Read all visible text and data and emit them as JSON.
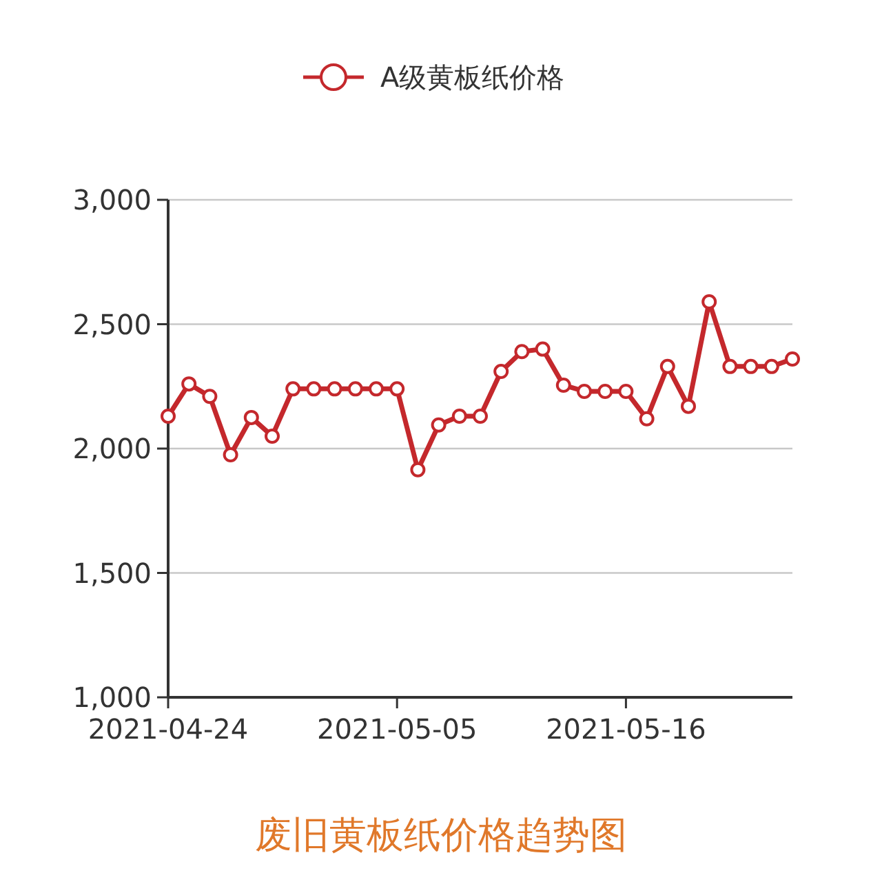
{
  "chart_data": {
    "type": "line",
    "title": "废旧黄板纸价格趋势图",
    "x": [
      "2021-04-24",
      "2021-04-25",
      "2021-04-26",
      "2021-04-27",
      "2021-04-28",
      "2021-04-29",
      "2021-04-30",
      "2021-05-01",
      "2021-05-02",
      "2021-05-03",
      "2021-05-04",
      "2021-05-05",
      "2021-05-06",
      "2021-05-07",
      "2021-05-08",
      "2021-05-09",
      "2021-05-10",
      "2021-05-11",
      "2021-05-12",
      "2021-05-13",
      "2021-05-14",
      "2021-05-15",
      "2021-05-16",
      "2021-05-17",
      "2021-05-18",
      "2021-05-19",
      "2021-05-20",
      "2021-05-21",
      "2021-05-22",
      "2021-05-23",
      "2021-05-24"
    ],
    "series": [
      {
        "name": "A级黄板纸价格",
        "color": "#c4282c",
        "values": [
          2130,
          2260,
          2210,
          1975,
          2125,
          2050,
          2240,
          2240,
          2240,
          2240,
          2240,
          2240,
          1915,
          2095,
          2130,
          2130,
          2310,
          2390,
          2400,
          2255,
          2230,
          2230,
          2230,
          2120,
          2330,
          2170,
          2590,
          2330,
          2330,
          2330,
          2360
        ]
      }
    ],
    "xlim": [
      "2021-04-24",
      "2021-05-24"
    ],
    "ylim": [
      1000,
      3000
    ],
    "xticks": [
      "2021-04-24",
      "2021-05-05",
      "2021-05-16"
    ],
    "yticks": [
      {
        "value": 1000,
        "label": "1,000"
      },
      {
        "value": 1500,
        "label": "1,500"
      },
      {
        "value": 2000,
        "label": "2,000"
      },
      {
        "value": 2500,
        "label": "2,500"
      },
      {
        "value": 3000,
        "label": "3,000"
      }
    ],
    "grid": "y",
    "legend": "top",
    "marker": "circle",
    "line_style": "solid"
  }
}
